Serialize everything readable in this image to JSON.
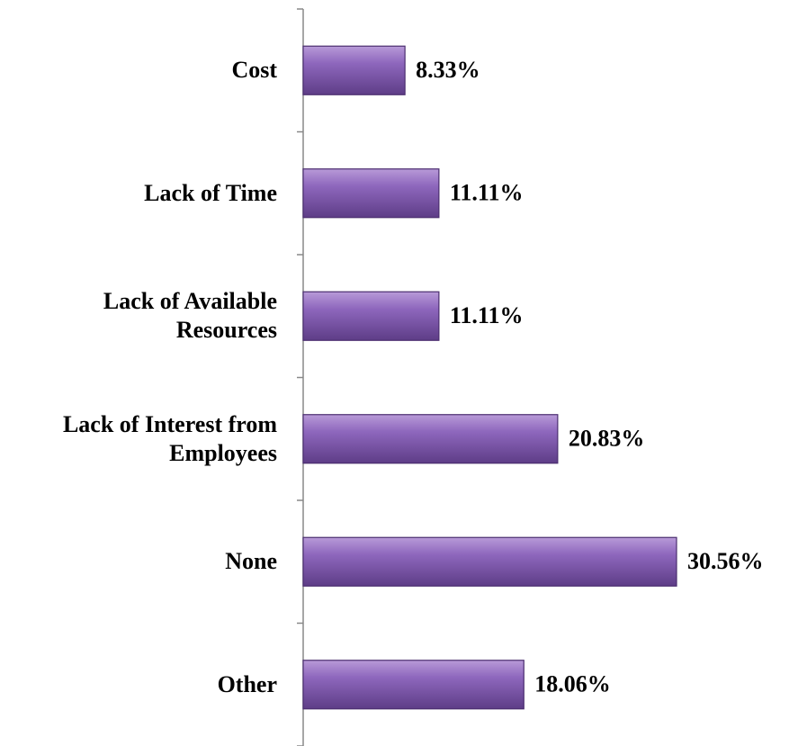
{
  "chart_data": {
    "type": "barh",
    "categories": [
      "Cost",
      "Lack of Time",
      "Lack of Available Resources",
      "Lack of Interest from Employees",
      "None",
      "Other"
    ],
    "values": [
      8.33,
      11.11,
      11.11,
      20.83,
      30.56,
      18.06
    ],
    "value_labels": [
      "8.33%",
      "11.11%",
      "11.11%",
      "20.83%",
      "30.56%",
      "18.06%"
    ],
    "color": "#7b55a8"
  }
}
